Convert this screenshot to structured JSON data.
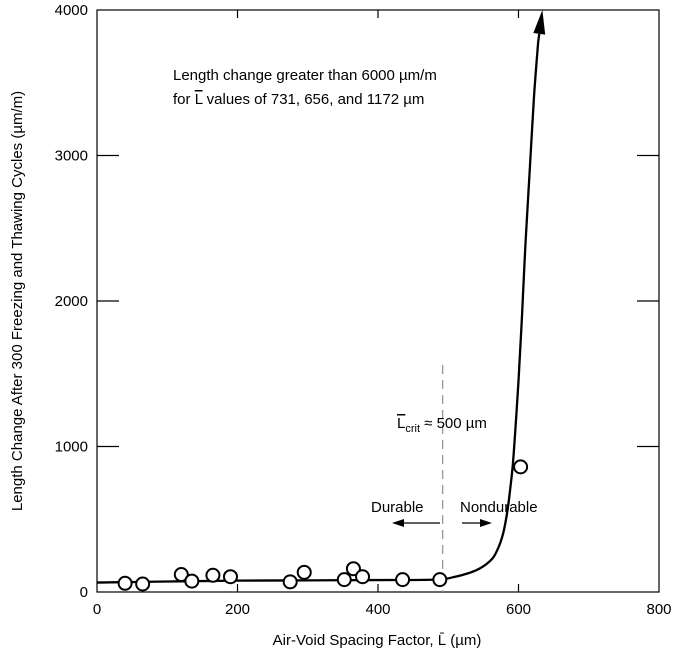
{
  "chart_data": {
    "type": "scatter",
    "xlabel": "Air-Void Spacing Factor, L̄ (µm)",
    "ylabel": "Length Change After 300 Freezing and Thawing Cycles (µm/m)",
    "xlim": [
      0,
      800
    ],
    "ylim": [
      0,
      4000
    ],
    "x_ticks": [
      "0",
      "200",
      "400",
      "600",
      "800"
    ],
    "y_ticks": [
      "0",
      "1000",
      "2000",
      "3000",
      "4000"
    ],
    "grid": false,
    "points": [
      {
        "x": 40,
        "y": 60
      },
      {
        "x": 65,
        "y": 55
      },
      {
        "x": 120,
        "y": 120
      },
      {
        "x": 135,
        "y": 75
      },
      {
        "x": 165,
        "y": 115
      },
      {
        "x": 190,
        "y": 105
      },
      {
        "x": 275,
        "y": 70
      },
      {
        "x": 295,
        "y": 135
      },
      {
        "x": 352,
        "y": 85
      },
      {
        "x": 365,
        "y": 160
      },
      {
        "x": 378,
        "y": 105
      },
      {
        "x": 435,
        "y": 85
      },
      {
        "x": 488,
        "y": 85
      },
      {
        "x": 603,
        "y": 860
      }
    ],
    "trend_curve": [
      [
        0,
        65
      ],
      [
        100,
        72
      ],
      [
        200,
        78
      ],
      [
        300,
        80
      ],
      [
        400,
        82
      ],
      [
        480,
        85
      ],
      [
        510,
        105
      ],
      [
        540,
        150
      ],
      [
        560,
        215
      ],
      [
        570,
        290
      ],
      [
        578,
        400
      ],
      [
        584,
        550
      ],
      [
        588,
        700
      ],
      [
        592,
        880
      ],
      [
        596,
        1150
      ],
      [
        600,
        1450
      ],
      [
        605,
        1900
      ],
      [
        610,
        2400
      ],
      [
        616,
        2900
      ],
      [
        622,
        3400
      ],
      [
        628,
        3780
      ]
    ],
    "arrow_tip": [
      634,
      4000
    ],
    "critical_line_x": 492,
    "critical_line_top_y": 1560,
    "annotations": {
      "note_line1": "Length change greater than 6000 µm/m",
      "note_line2_prefix": "for ",
      "note_line2_symbol": "L",
      "note_line2_suffix": " values of 731, 656, and 1172 µm",
      "lcrit_symbol": "L",
      "lcrit_sub": "crit",
      "lcrit_suffix": " ≈ 500 µm",
      "durable": "Durable",
      "nondurable": "Nondurable"
    }
  }
}
